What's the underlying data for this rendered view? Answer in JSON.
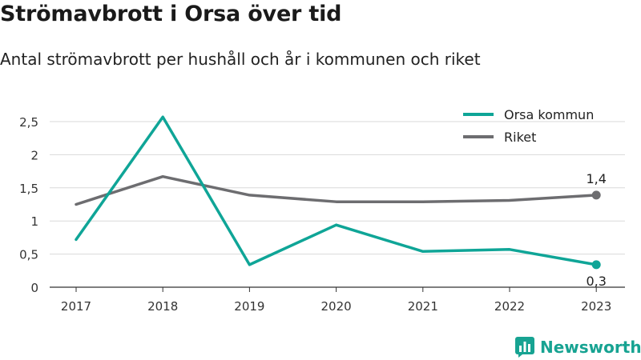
{
  "title": "Strömavbrott i Orsa över tid",
  "subtitle": "Antal strömavbrott per hushåll och år i kommunen och riket",
  "brand": {
    "name": "Newsworthy",
    "color": "#17a392"
  },
  "colors": {
    "orsa": "#0fa597",
    "riket": "#6d6d70",
    "grid": "#d9d9d9",
    "axis": "#333333",
    "text": "#333333"
  },
  "chart_data": {
    "type": "line",
    "title": "Strömavbrott i Orsa över tid",
    "subtitle": "Antal strömavbrott per hushåll och år i kommunen och riket",
    "xlabel": "",
    "ylabel": "",
    "categories": [
      "2017",
      "2018",
      "2019",
      "2020",
      "2021",
      "2022",
      "2023"
    ],
    "ylim": [
      0,
      2.5
    ],
    "yticks": [
      0,
      0.5,
      1,
      1.5,
      2,
      2.5
    ],
    "ytick_labels": [
      "0",
      "0,5",
      "1",
      "1,5",
      "2",
      "2,5"
    ],
    "grid": true,
    "legend_position": "top-right",
    "series": [
      {
        "name": "Orsa kommun",
        "color": "#0fa597",
        "values": [
          0.72,
          2.57,
          0.34,
          0.94,
          0.54,
          0.57,
          0.34
        ],
        "end_label": "0,3"
      },
      {
        "name": "Riket",
        "color": "#6d6d70",
        "values": [
          1.25,
          1.67,
          1.39,
          1.29,
          1.29,
          1.31,
          1.39
        ],
        "end_label": "1,4"
      }
    ]
  }
}
